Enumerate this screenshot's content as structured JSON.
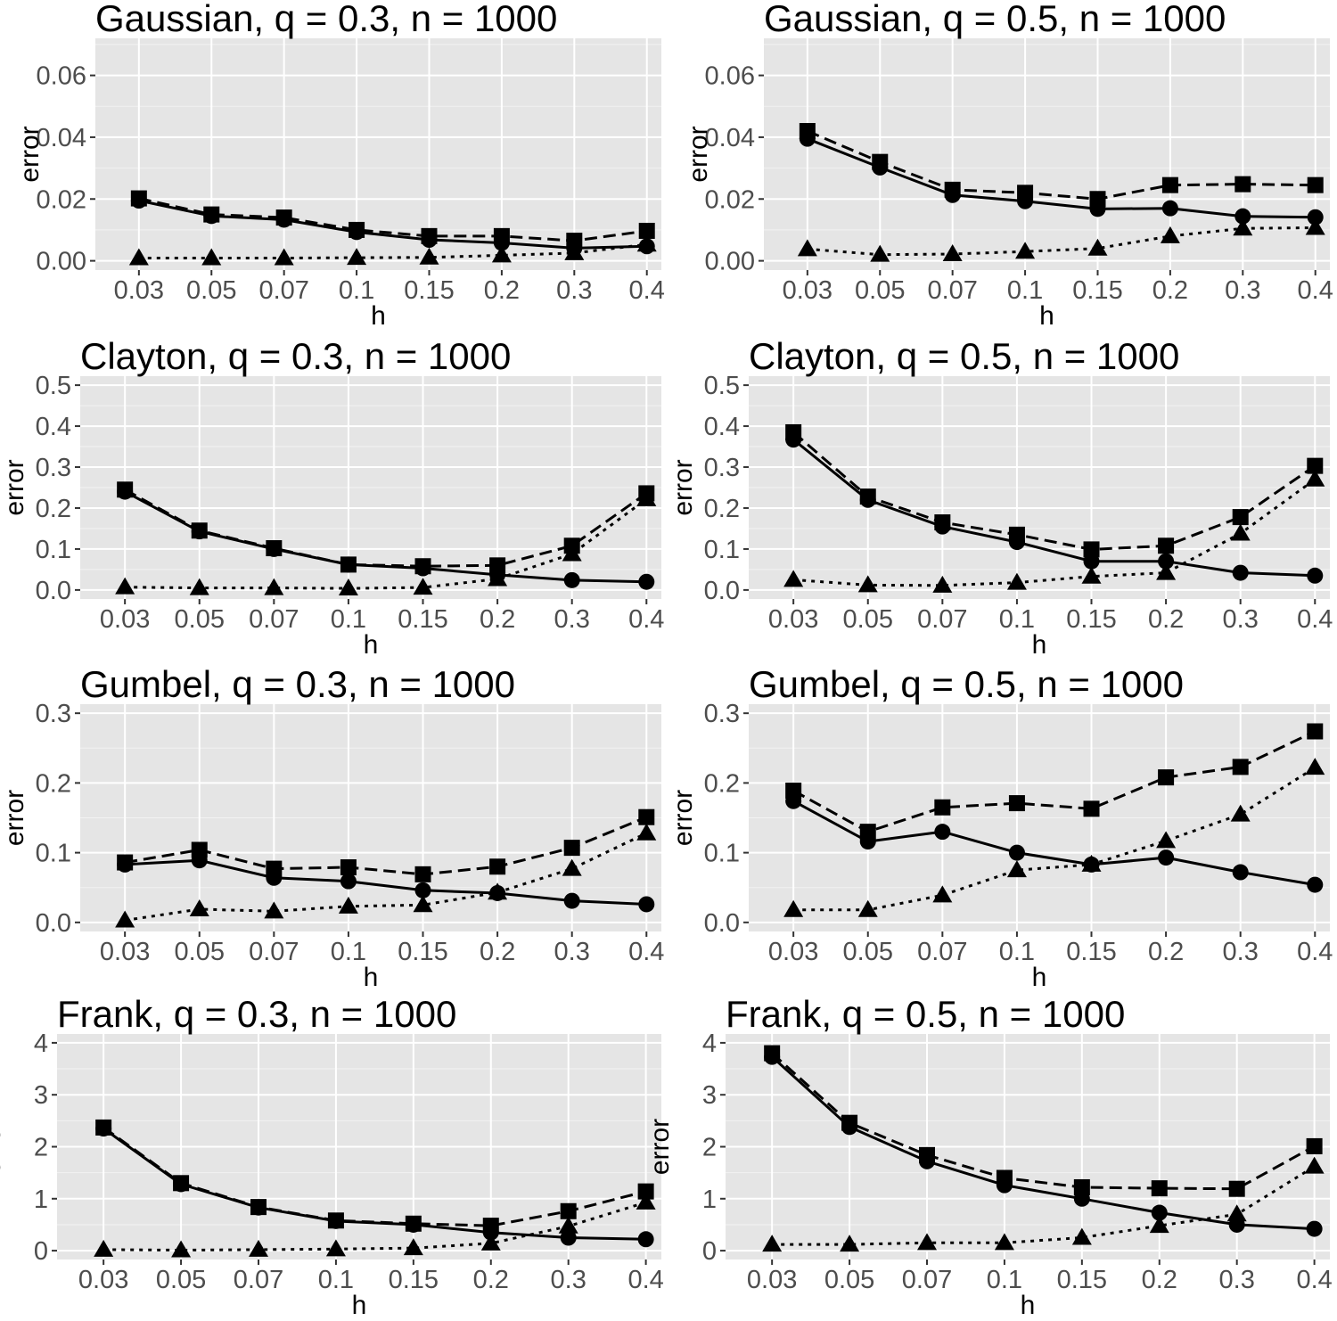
{
  "chart_data": [
    {
      "type": "line",
      "title": "Gaussian, q = 0.3, n = 1000",
      "xlabel": "h",
      "ylabel": "error",
      "categories": [
        "0.03",
        "0.05",
        "0.07",
        "0.1",
        "0.15",
        "0.2",
        "0.3",
        "0.4"
      ],
      "ylim": [
        -0.003,
        0.072
      ],
      "yticks": [
        0.0,
        0.02,
        0.04,
        0.06
      ],
      "ytick_labels": [
        "0.00",
        "0.02",
        "0.04",
        "0.06"
      ],
      "series": [
        {
          "name": "circle",
          "line": "solid",
          "marker": "circle",
          "values": [
            0.0195,
            0.0145,
            0.0133,
            0.0093,
            0.0068,
            0.0058,
            0.0041,
            0.0047
          ]
        },
        {
          "name": "square",
          "line": "dashed",
          "marker": "square",
          "values": [
            0.0202,
            0.015,
            0.014,
            0.01,
            0.008,
            0.008,
            0.0065,
            0.0097
          ]
        },
        {
          "name": "triangle",
          "line": "dotted",
          "marker": "triangle",
          "values": [
            0.0009,
            0.0009,
            0.0009,
            0.001,
            0.0011,
            0.0018,
            0.0025,
            0.0053
          ]
        }
      ]
    },
    {
      "type": "line",
      "title": "Gaussian, q = 0.5, n = 1000",
      "xlabel": "h",
      "ylabel": "error",
      "categories": [
        "0.03",
        "0.05",
        "0.07",
        "0.1",
        "0.15",
        "0.2",
        "0.3",
        "0.4"
      ],
      "ylim": [
        -0.003,
        0.072
      ],
      "yticks": [
        0.0,
        0.02,
        0.04,
        0.06
      ],
      "ytick_labels": [
        "0.00",
        "0.02",
        "0.04",
        "0.06"
      ],
      "series": [
        {
          "name": "circle",
          "line": "solid",
          "marker": "circle",
          "values": [
            0.0395,
            0.0302,
            0.0213,
            0.0193,
            0.0168,
            0.017,
            0.0144,
            0.0141
          ]
        },
        {
          "name": "square",
          "line": "dashed",
          "marker": "square",
          "values": [
            0.042,
            0.032,
            0.023,
            0.022,
            0.02,
            0.0245,
            0.0248,
            0.0245
          ]
        },
        {
          "name": "triangle",
          "line": "dotted",
          "marker": "triangle",
          "values": [
            0.0038,
            0.002,
            0.0022,
            0.003,
            0.004,
            0.008,
            0.0105,
            0.0107
          ]
        }
      ]
    },
    {
      "type": "line",
      "title": "Clayton, q = 0.3, n = 1000",
      "xlabel": "h",
      "ylabel": "error",
      "categories": [
        "0.03",
        "0.05",
        "0.07",
        "0.1",
        "0.15",
        "0.2",
        "0.3",
        "0.4"
      ],
      "ylim": [
        -0.022,
        0.522
      ],
      "yticks": [
        0.0,
        0.1,
        0.2,
        0.3,
        0.4,
        0.5
      ],
      "ytick_labels": [
        "0.0",
        "0.1",
        "0.2",
        "0.3",
        "0.4",
        "0.5"
      ],
      "series": [
        {
          "name": "circle",
          "line": "solid",
          "marker": "circle",
          "values": [
            0.24,
            0.143,
            0.1,
            0.062,
            0.053,
            0.037,
            0.024,
            0.02
          ]
        },
        {
          "name": "square",
          "line": "dashed",
          "marker": "square",
          "values": [
            0.245,
            0.145,
            0.102,
            0.062,
            0.058,
            0.06,
            0.108,
            0.236
          ]
        },
        {
          "name": "triangle",
          "line": "dotted",
          "marker": "triangle",
          "values": [
            0.007,
            0.005,
            0.005,
            0.004,
            0.006,
            0.027,
            0.088,
            0.222
          ]
        }
      ]
    },
    {
      "type": "line",
      "title": "Clayton, q = 0.5, n = 1000",
      "xlabel": "h",
      "ylabel": "error",
      "categories": [
        "0.03",
        "0.05",
        "0.07",
        "0.1",
        "0.15",
        "0.2",
        "0.3",
        "0.4"
      ],
      "ylim": [
        -0.022,
        0.522
      ],
      "yticks": [
        0.0,
        0.1,
        0.2,
        0.3,
        0.4,
        0.5
      ],
      "ytick_labels": [
        "0.0",
        "0.1",
        "0.2",
        "0.3",
        "0.4",
        "0.5"
      ],
      "series": [
        {
          "name": "circle",
          "line": "solid",
          "marker": "circle",
          "values": [
            0.367,
            0.22,
            0.155,
            0.117,
            0.07,
            0.07,
            0.042,
            0.035
          ]
        },
        {
          "name": "square",
          "line": "dashed",
          "marker": "square",
          "values": [
            0.385,
            0.228,
            0.165,
            0.135,
            0.099,
            0.108,
            0.178,
            0.303
          ]
        },
        {
          "name": "triangle",
          "line": "dotted",
          "marker": "triangle",
          "values": [
            0.025,
            0.012,
            0.011,
            0.018,
            0.033,
            0.042,
            0.138,
            0.27
          ]
        }
      ]
    },
    {
      "type": "line",
      "title": "Gumbel, q = 0.3, n = 1000",
      "xlabel": "h",
      "ylabel": "error",
      "categories": [
        "0.03",
        "0.05",
        "0.07",
        "0.1",
        "0.15",
        "0.2",
        "0.3",
        "0.4"
      ],
      "ylim": [
        -0.013,
        0.313
      ],
      "yticks": [
        0.0,
        0.1,
        0.2,
        0.3
      ],
      "ytick_labels": [
        "0.0",
        "0.1",
        "0.2",
        "0.3"
      ],
      "series": [
        {
          "name": "circle",
          "line": "solid",
          "marker": "circle",
          "values": [
            0.083,
            0.089,
            0.064,
            0.059,
            0.046,
            0.042,
            0.031,
            0.026
          ]
        },
        {
          "name": "square",
          "line": "dashed",
          "marker": "square",
          "values": [
            0.086,
            0.104,
            0.077,
            0.079,
            0.069,
            0.08,
            0.107,
            0.151
          ]
        },
        {
          "name": "triangle",
          "line": "dotted",
          "marker": "triangle",
          "values": [
            0.003,
            0.019,
            0.016,
            0.023,
            0.025,
            0.043,
            0.077,
            0.128
          ]
        }
      ]
    },
    {
      "type": "line",
      "title": "Gumbel, q = 0.5, n = 1000",
      "xlabel": "h",
      "ylabel": "error",
      "categories": [
        "0.03",
        "0.05",
        "0.07",
        "0.1",
        "0.15",
        "0.2",
        "0.3",
        "0.4"
      ],
      "ylim": [
        -0.013,
        0.313
      ],
      "yticks": [
        0.0,
        0.1,
        0.2,
        0.3
      ],
      "ytick_labels": [
        "0.0",
        "0.1",
        "0.2",
        "0.3"
      ],
      "series": [
        {
          "name": "circle",
          "line": "solid",
          "marker": "circle",
          "values": [
            0.174,
            0.116,
            0.13,
            0.1,
            0.083,
            0.093,
            0.072,
            0.054
          ]
        },
        {
          "name": "square",
          "line": "dashed",
          "marker": "square",
          "values": [
            0.189,
            0.13,
            0.165,
            0.171,
            0.163,
            0.208,
            0.223,
            0.274
          ]
        },
        {
          "name": "triangle",
          "line": "dotted",
          "marker": "triangle",
          "values": [
            0.018,
            0.018,
            0.039,
            0.075,
            0.083,
            0.117,
            0.155,
            0.222
          ]
        }
      ]
    },
    {
      "type": "line",
      "title": "Frank, q = 0.3, n = 1000",
      "xlabel": "h",
      "ylabel": "error",
      "categories": [
        "0.03",
        "0.05",
        "0.07",
        "0.1",
        "0.15",
        "0.2",
        "0.3",
        "0.4"
      ],
      "ylim": [
        -0.17,
        4.17
      ],
      "yticks": [
        0,
        1,
        2,
        3,
        4
      ],
      "ytick_labels": [
        "0",
        "1",
        "2",
        "3",
        "4"
      ],
      "series": [
        {
          "name": "circle",
          "line": "solid",
          "marker": "circle",
          "values": [
            2.35,
            1.28,
            0.83,
            0.57,
            0.5,
            0.35,
            0.25,
            0.22
          ]
        },
        {
          "name": "square",
          "line": "dashed",
          "marker": "square",
          "values": [
            2.37,
            1.3,
            0.84,
            0.58,
            0.52,
            0.48,
            0.76,
            1.14
          ]
        },
        {
          "name": "triangle",
          "line": "dotted",
          "marker": "triangle",
          "values": [
            0.02,
            0.01,
            0.02,
            0.03,
            0.05,
            0.14,
            0.47,
            0.93
          ]
        }
      ]
    },
    {
      "type": "line",
      "title": "Frank, q = 0.5, n = 1000",
      "xlabel": "h",
      "ylabel": "error",
      "categories": [
        "0.03",
        "0.05",
        "0.07",
        "0.1",
        "0.15",
        "0.2",
        "0.3",
        "0.4"
      ],
      "ylim": [
        -0.17,
        4.17
      ],
      "yticks": [
        0,
        1,
        2,
        3,
        4
      ],
      "ytick_labels": [
        "0",
        "1",
        "2",
        "3",
        "4"
      ],
      "series": [
        {
          "name": "circle",
          "line": "solid",
          "marker": "circle",
          "values": [
            3.73,
            2.38,
            1.72,
            1.26,
            1.0,
            0.73,
            0.5,
            0.42
          ]
        },
        {
          "name": "square",
          "line": "dashed",
          "marker": "square",
          "values": [
            3.8,
            2.46,
            1.84,
            1.4,
            1.22,
            1.2,
            1.19,
            2.01
          ]
        },
        {
          "name": "triangle",
          "line": "dotted",
          "marker": "triangle",
          "values": [
            0.12,
            0.12,
            0.15,
            0.15,
            0.25,
            0.48,
            0.7,
            1.62
          ]
        }
      ]
    }
  ]
}
